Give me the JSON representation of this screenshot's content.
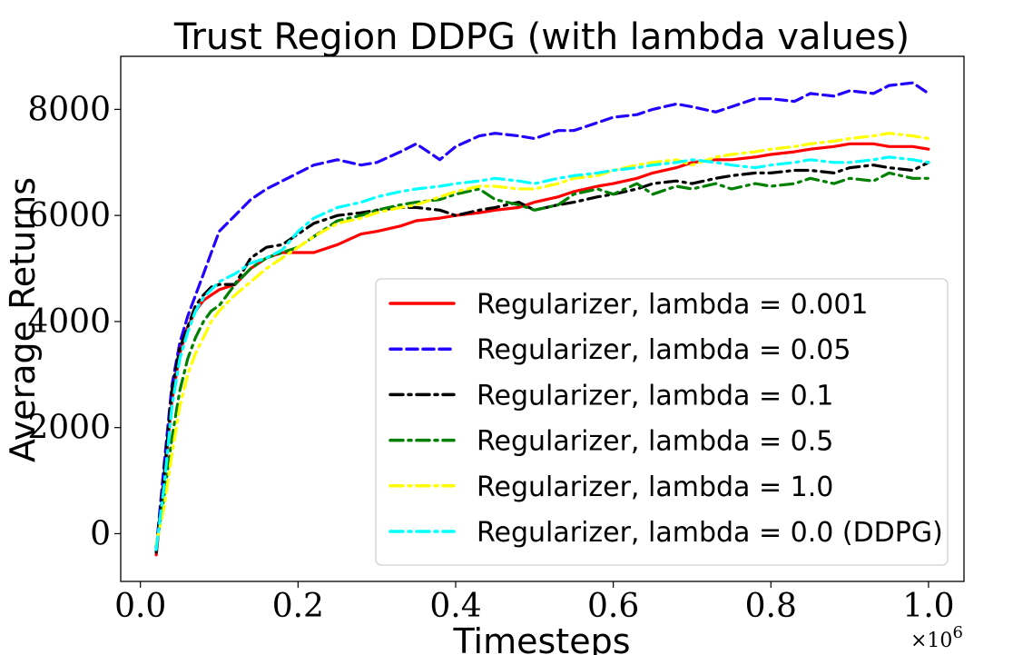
{
  "chart_data": {
    "type": "line",
    "title": "Trust Region DDPG (with lambda values)",
    "xlabel": "Timesteps",
    "ylabel": "Average Returns",
    "x_offset_label": "×10^6",
    "xlim": [
      -0.025,
      1.045
    ],
    "ylim": [
      -900,
      9000
    ],
    "x_ticks": [
      {
        "value": 0.0,
        "label": "0.0"
      },
      {
        "value": 0.2,
        "label": "0.2"
      },
      {
        "value": 0.4,
        "label": "0.4"
      },
      {
        "value": 0.6,
        "label": "0.6"
      },
      {
        "value": 0.8,
        "label": "0.8"
      },
      {
        "value": 1.0,
        "label": "1.0"
      }
    ],
    "y_ticks": [
      {
        "value": 0,
        "label": "0"
      },
      {
        "value": 2000,
        "label": "2000"
      },
      {
        "value": 4000,
        "label": "4000"
      },
      {
        "value": 6000,
        "label": "6000"
      },
      {
        "value": 8000,
        "label": "8000"
      }
    ],
    "grid": false,
    "legend_position": "lower-right",
    "x": [
      0.02,
      0.03,
      0.04,
      0.05,
      0.06,
      0.07,
      0.08,
      0.09,
      0.1,
      0.12,
      0.14,
      0.16,
      0.18,
      0.2,
      0.22,
      0.25,
      0.28,
      0.3,
      0.33,
      0.35,
      0.38,
      0.4,
      0.43,
      0.45,
      0.48,
      0.5,
      0.53,
      0.55,
      0.58,
      0.6,
      0.63,
      0.65,
      0.68,
      0.7,
      0.73,
      0.75,
      0.78,
      0.8,
      0.83,
      0.85,
      0.88,
      0.9,
      0.93,
      0.95,
      0.98,
      1.0
    ],
    "series": [
      {
        "name": "Regularizer, lambda = 0.001",
        "color": "#ff0000",
        "dash": "solid",
        "values": [
          -400,
          1000,
          2500,
          3400,
          3900,
          4200,
          4400,
          4500,
          4600,
          4700,
          5000,
          5200,
          5300,
          5300,
          5300,
          5450,
          5650,
          5700,
          5800,
          5900,
          5950,
          6000,
          6050,
          6100,
          6150,
          6250,
          6350,
          6450,
          6550,
          6600,
          6700,
          6800,
          6900,
          7000,
          7050,
          7050,
          7100,
          7150,
          7200,
          7250,
          7300,
          7350,
          7350,
          7300,
          7300,
          7250
        ]
      },
      {
        "name": "Regularizer, lambda = 0.05",
        "color": "#2200ff",
        "dash": "dashed",
        "values": [
          -300,
          1300,
          2800,
          3600,
          4100,
          4500,
          4900,
          5300,
          5700,
          6000,
          6300,
          6500,
          6650,
          6800,
          6950,
          7050,
          6950,
          7000,
          7200,
          7350,
          7050,
          7300,
          7500,
          7550,
          7500,
          7450,
          7600,
          7600,
          7750,
          7850,
          7900,
          8000,
          8100,
          8050,
          7950,
          8050,
          8200,
          8200,
          8150,
          8300,
          8250,
          8350,
          8300,
          8450,
          8500,
          8300
        ]
      },
      {
        "name": "Regularizer, lambda = 0.1",
        "color": "#000000",
        "dash": "dashdot",
        "values": [
          -350,
          1100,
          2700,
          3500,
          3900,
          4300,
          4500,
          4650,
          4700,
          4700,
          5200,
          5400,
          5450,
          5650,
          5850,
          6000,
          6050,
          6100,
          6150,
          6150,
          6100,
          6000,
          6100,
          6150,
          6250,
          6100,
          6200,
          6250,
          6350,
          6400,
          6500,
          6600,
          6650,
          6600,
          6700,
          6750,
          6800,
          6800,
          6850,
          6850,
          6800,
          6900,
          6950,
          6900,
          6850,
          7000
        ]
      },
      {
        "name": "Regularizer, lambda = 0.5",
        "color": "#008000",
        "dash": "dashdot",
        "values": [
          -250,
          700,
          1800,
          2700,
          3300,
          3700,
          4000,
          4200,
          4300,
          4700,
          5000,
          5200,
          5300,
          5400,
          5600,
          5900,
          6000,
          6100,
          6200,
          6250,
          6300,
          6400,
          6500,
          6300,
          6200,
          6100,
          6200,
          6400,
          6500,
          6400,
          6600,
          6400,
          6550,
          6500,
          6600,
          6500,
          6600,
          6550,
          6600,
          6700,
          6600,
          6700,
          6650,
          6800,
          6700,
          6700
        ]
      },
      {
        "name": "Regularizer, lambda = 1.0",
        "color": "#ffff00",
        "dash": "dashdot",
        "values": [
          -200,
          500,
          1500,
          2400,
          3000,
          3400,
          3700,
          4000,
          4200,
          4500,
          4750,
          5000,
          5200,
          5400,
          5600,
          5850,
          5950,
          6050,
          6150,
          6200,
          6350,
          6450,
          6550,
          6550,
          6500,
          6500,
          6600,
          6700,
          6750,
          6850,
          6950,
          7000,
          7050,
          6950,
          7100,
          7150,
          7200,
          7250,
          7300,
          7350,
          7400,
          7450,
          7500,
          7550,
          7500,
          7450
        ]
      },
      {
        "name": "Regularizer, lambda = 0.0 (DDPG)",
        "color": "#00ffff",
        "dash": "dashdot",
        "values": [
          -300,
          900,
          2400,
          3300,
          3800,
          4200,
          4450,
          4600,
          4750,
          4900,
          5100,
          5200,
          5350,
          5700,
          5950,
          6150,
          6250,
          6350,
          6450,
          6500,
          6550,
          6600,
          6650,
          6700,
          6650,
          6600,
          6700,
          6750,
          6800,
          6850,
          6900,
          6950,
          7000,
          7050,
          7000,
          6950,
          6900,
          6950,
          7000,
          7050,
          7000,
          7000,
          7050,
          7100,
          7050,
          7000
        ]
      }
    ]
  }
}
